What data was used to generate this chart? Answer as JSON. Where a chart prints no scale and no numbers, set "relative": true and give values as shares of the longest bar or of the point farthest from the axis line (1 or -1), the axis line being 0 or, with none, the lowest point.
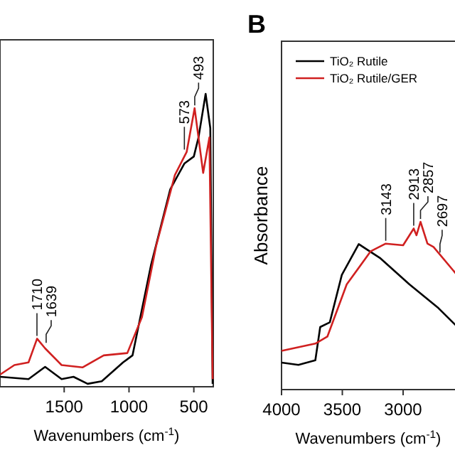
{
  "chart_data": [
    {
      "type": "line",
      "xlabel": "Wavenumbers (cm$^{-1}$)",
      "relative": true,
      "xlim": [
        1995,
        350
      ],
      "xticks": [
        1500,
        1000,
        500
      ],
      "legend": false,
      "series": [
        {
          "color": "#000000",
          "x": [
            1993,
            1775,
            1647,
            1520,
            1428,
            1319,
            1210,
            1046,
            973,
            831,
            682,
            573,
            500,
            464,
            409,
            373,
            355
          ],
          "values": [
            0.034,
            0.026,
            0.068,
            0.026,
            0.034,
            0.01,
            0.019,
            0.083,
            0.107,
            0.414,
            0.674,
            0.762,
            0.786,
            0.851,
            1.0,
            0.883,
            0.01
          ]
        },
        {
          "color": "#d02020",
          "x": [
            1993,
            1884,
            1775,
            1709,
            1647,
            1520,
            1359,
            1195,
            1013,
            900,
            791,
            646,
            555,
            494,
            428,
            380,
            355
          ],
          "values": [
            0.042,
            0.074,
            0.083,
            0.164,
            0.131,
            0.074,
            0.066,
            0.107,
            0.115,
            0.238,
            0.48,
            0.723,
            0.802,
            0.951,
            0.73,
            0.851,
            0.026
          ]
        }
      ],
      "annotations": [
        {
          "text": "1710",
          "x": 1710,
          "y": 0.164
        },
        {
          "text": "1639",
          "x": 1639,
          "y": 0.14
        },
        {
          "text": "573",
          "x": 573,
          "y": 0.8
        },
        {
          "text": "493",
          "x": 493,
          "y": 0.951
        }
      ]
    },
    {
      "type": "line",
      "title": "B",
      "xlabel": "Wavenumbers (cm$^{-1}$)",
      "ylabel": "Absorbance",
      "relative": true,
      "xlim": [
        4000,
        2550
      ],
      "xticks": [
        4000,
        3500,
        3000
      ],
      "legend": "top left",
      "series": [
        {
          "name": "TiO₂ Rutile",
          "color": "#000000",
          "x": [
            4000,
            3861,
            3722,
            3682,
            3603,
            3504,
            3365,
            3186,
            2948,
            2710,
            2553
          ],
          "values": [
            0.161,
            0.147,
            0.175,
            0.373,
            0.401,
            0.684,
            0.867,
            0.782,
            0.627,
            0.486,
            0.373
          ]
        },
        {
          "name": "TiO₂ Rutile/GER",
          "color": "#d02020",
          "x": [
            4000,
            3722,
            3623,
            3464,
            3266,
            3143,
            3000,
            2913,
            2890,
            2857,
            2800,
            2750,
            2590,
            2553
          ],
          "values": [
            0.231,
            0.274,
            0.316,
            0.627,
            0.825,
            0.87,
            0.86,
            0.96,
            0.92,
            1.0,
            0.87,
            0.85,
            0.712,
            0.68
          ]
        }
      ],
      "annotations": [
        {
          "text": "3143",
          "x": 3143,
          "y": 0.87
        },
        {
          "text": "2913",
          "x": 2913,
          "y": 0.96
        },
        {
          "text": "2857",
          "x": 2857,
          "y": 1.0
        },
        {
          "text": "2697",
          "x": 2697,
          "y": 0.8
        }
      ]
    }
  ]
}
